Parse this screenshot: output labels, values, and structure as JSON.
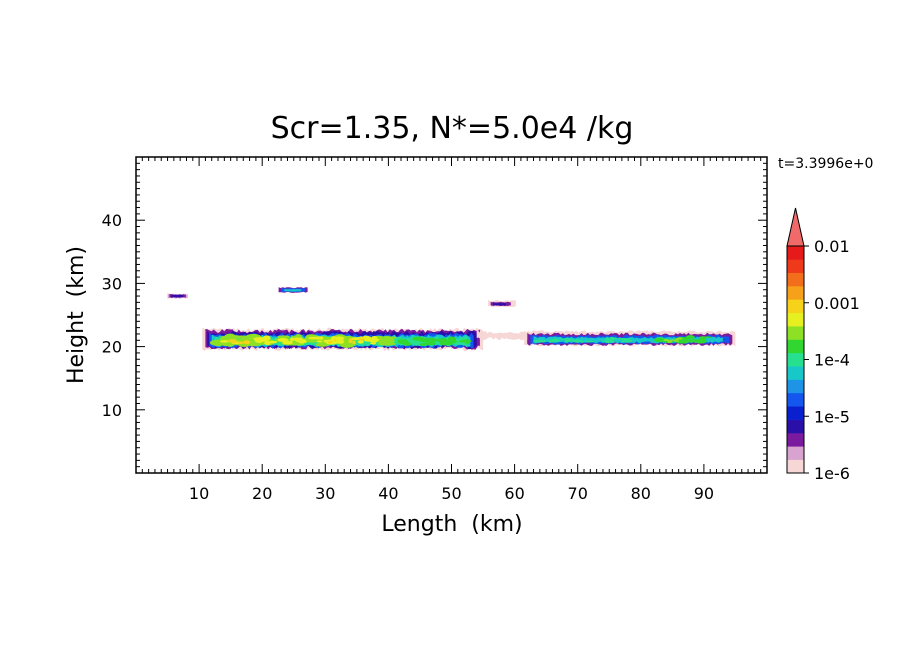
{
  "chart_data": {
    "type": "heatmap",
    "title": "Scr=1.35, N*=5.0e4 /kg",
    "time_label": "t=3.3996e+0",
    "xlabel": "Length  (km)",
    "ylabel": "Height  (km)",
    "xlim": [
      0,
      100
    ],
    "ylim": [
      0,
      50
    ],
    "xticks": [
      10,
      20,
      30,
      40,
      50,
      60,
      70,
      80,
      90
    ],
    "yticks": [
      10,
      20,
      30,
      40
    ],
    "colorbar": {
      "scale": "log",
      "range": [
        1e-06,
        0.01
      ],
      "tick_values": [
        1e-06,
        1e-05,
        0.0001,
        0.001,
        0.01
      ],
      "tick_labels": [
        "1e-6",
        "1e-5",
        "1e-4",
        "0.001",
        "0.01"
      ],
      "colors": [
        "#f7d6d6",
        "#d9a3cf",
        "#7a1a9e",
        "#2a0fa8",
        "#0a1fd0",
        "#1556ee",
        "#1e94e6",
        "#18c8c8",
        "#26e08f",
        "#31d631",
        "#8de024",
        "#e6ef1f",
        "#f7d21a",
        "#f7a11a",
        "#f26e1a",
        "#ee3a1a",
        "#e61a1a"
      ],
      "extend_color": "#f06a6a"
    },
    "features": [
      {
        "x": [
          11,
          54
        ],
        "y": [
          19.5,
          22.5
        ],
        "peak": "1e-4 to 1e-3"
      },
      {
        "x": [
          42,
          55
        ],
        "y": [
          20,
          22
        ],
        "peak": "1e-5 to 1e-4"
      },
      {
        "x": [
          62,
          95
        ],
        "y": [
          20,
          22
        ],
        "peak": "1e-5 to 1e-4"
      },
      {
        "x": [
          5,
          8
        ],
        "y": [
          27.5,
          28.3
        ],
        "peak": "1e-6 to 1e-5"
      },
      {
        "x": [
          23,
          27
        ],
        "y": [
          28.5,
          29.3
        ],
        "peak": "1e-5"
      },
      {
        "x": [
          56,
          60
        ],
        "y": [
          26.3,
          27.3
        ],
        "peak": "1e-6 to 1e-5"
      }
    ]
  }
}
